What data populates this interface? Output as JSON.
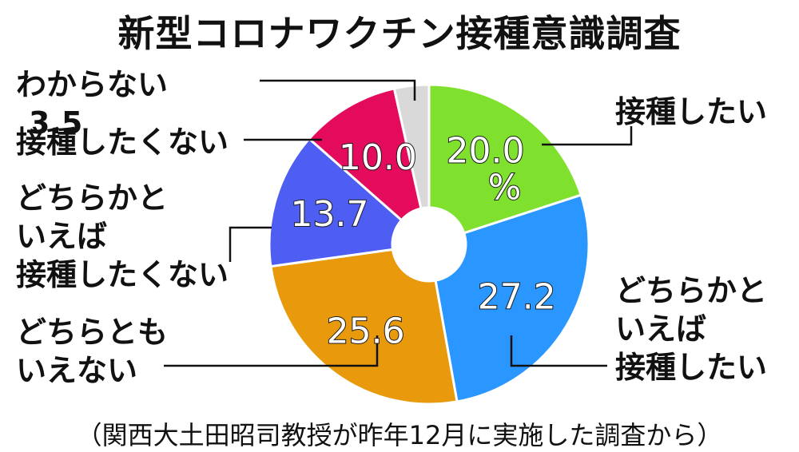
{
  "chart_data": {
    "type": "pie",
    "title": "新型コロナワクチン接種意識調査",
    "unit": "%",
    "source": "（関西大土田昭司教授が昨年12月に実施した調査から）",
    "slices": [
      {
        "label": "接種したい",
        "value": 20.0,
        "value_text": "20.0",
        "color": "#7fe02d"
      },
      {
        "label": "どちらかと いえば 接種したい",
        "label_lines": [
          "どちらかと",
          "いえば",
          "接種したい"
        ],
        "value": 27.2,
        "value_text": "27.2",
        "color": "#2a96ff"
      },
      {
        "label": "どちらとも いえない",
        "label_lines": [
          "どちらとも",
          "いえない"
        ],
        "value": 25.6,
        "value_text": "25.6",
        "color": "#e89a0c"
      },
      {
        "label": "どちらかと いえば 接種したくない",
        "label_lines": [
          "どちらかと",
          "いえば",
          "接種したくない"
        ],
        "value": 13.7,
        "value_text": "13.7",
        "color": "#4f5ef2"
      },
      {
        "label": "接種したくない",
        "value": 10.0,
        "value_text": "10.0",
        "color": "#e40b5c"
      },
      {
        "label": "わからない",
        "value": 3.5,
        "value_text": "3.5",
        "color": "#d9d9d9"
      }
    ]
  }
}
